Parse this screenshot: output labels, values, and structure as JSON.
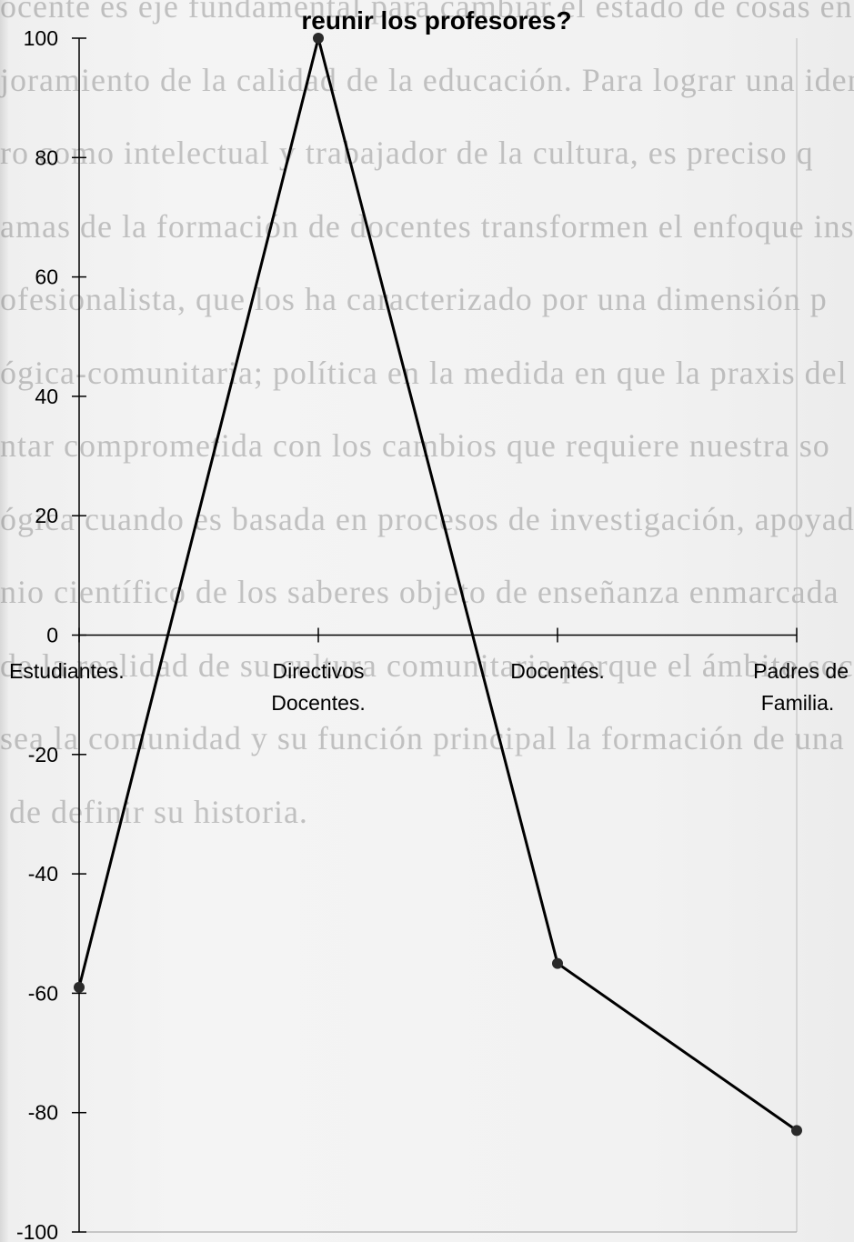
{
  "chart_data": {
    "type": "line",
    "title": "reunir los profesores?",
    "xlabel": "",
    "ylabel": "",
    "ylim": [
      -100,
      100
    ],
    "yticks": [
      100,
      80,
      60,
      40,
      20,
      0,
      -20,
      -40,
      -60,
      -80,
      -100
    ],
    "ytick_labels": [
      "100",
      "80",
      "60",
      "40",
      "20",
      "0",
      "-20",
      "-40",
      "-60",
      "-80",
      "-100"
    ],
    "categories": [
      [
        "Estudiantes."
      ],
      [
        "Directivos",
        "Docentes."
      ],
      [
        "Docentes."
      ],
      [
        "Padres de",
        "Familia."
      ]
    ],
    "series": [
      {
        "values": [
          -59,
          100,
          -55,
          -83
        ],
        "color": "#000000"
      }
    ],
    "grid": false,
    "legend": "none"
  },
  "background": {
    "color": "#f2f2f2",
    "bleed_through_text": [
      "ocente es eje fundamental para cambiar el estado de cosas en lo qu",
      "joramiento de la calidad de la educación. Para lograr una identi",
      "ro como intelectual y trabajador de la cultura, es preciso q",
      "amas de la formación de docentes transformen el enfoque instruc",
      "ofesionalista, que los ha caracterizado por una dimensión p",
      "ógica-comunitaria; política en la medida en que la praxis del ma",
      "ntar comprometida con los cambios que requiere nuestra so",
      "ógica cuando es basada en procesos de investigación, apoyada",
      "nio científico de los saberes objeto de enseñanza enmarcada",
      "de la realidad de su cultura comunitaria porque el ámbito social",
      "sea la comunidad y su función principal la formación de una p",
      "de definir su historia."
    ]
  }
}
